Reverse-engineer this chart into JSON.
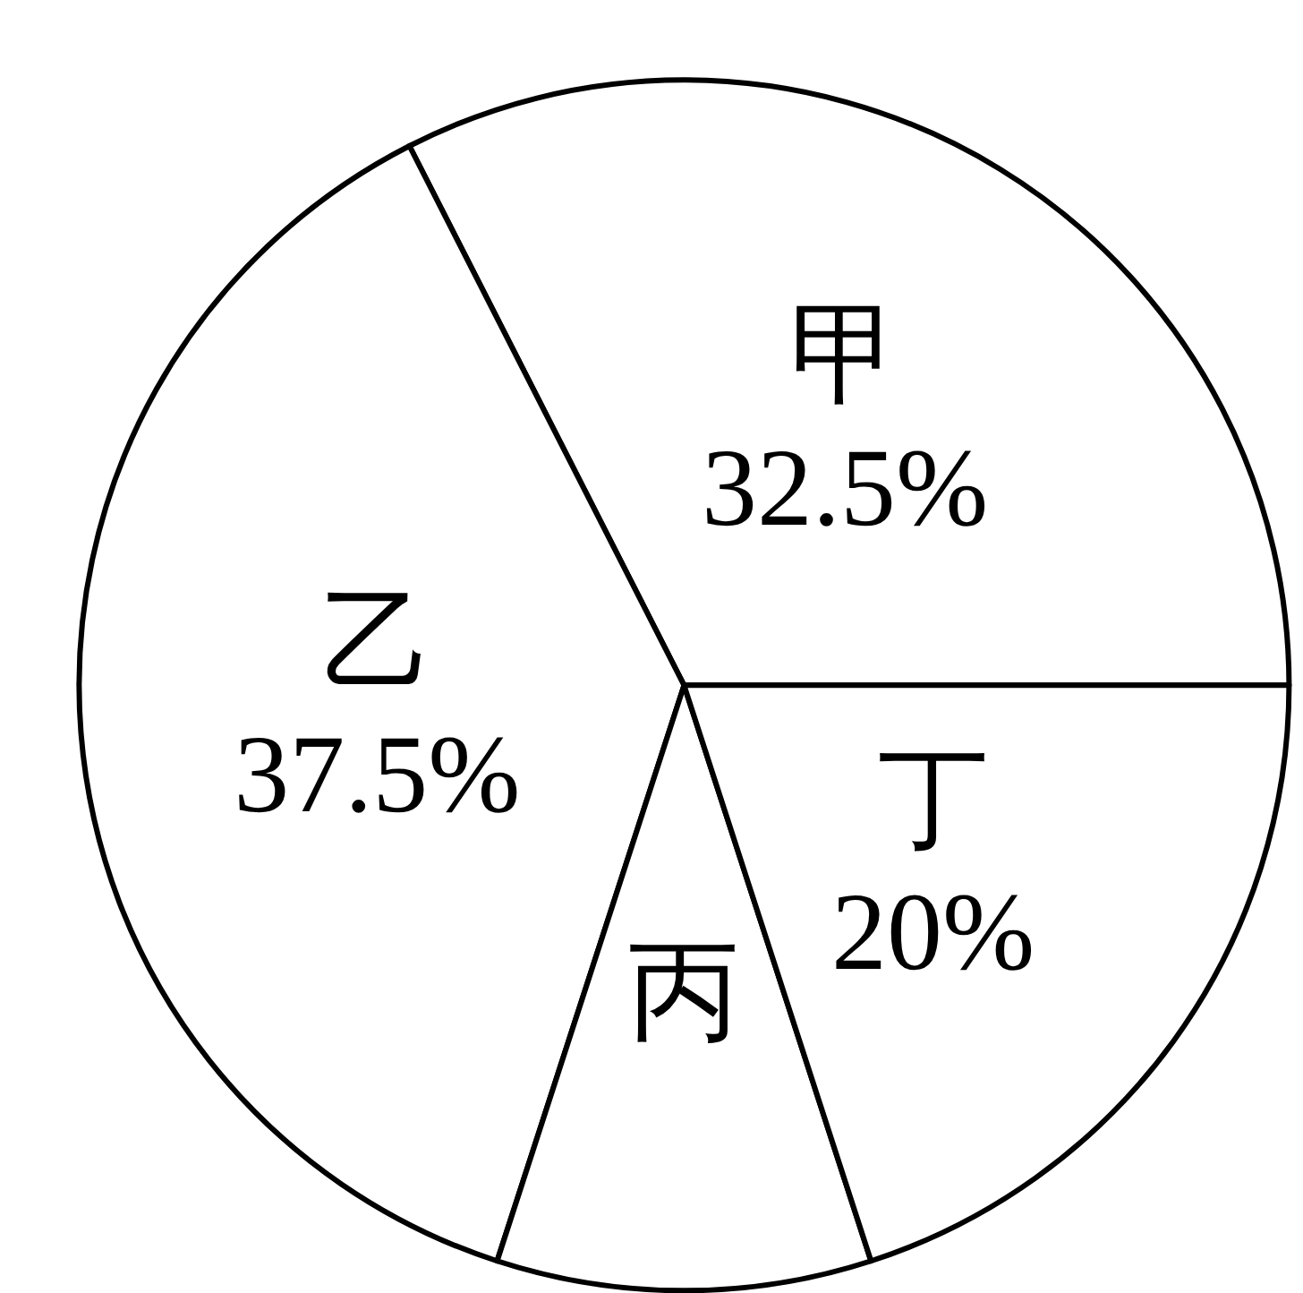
{
  "chart_data": {
    "type": "pie",
    "categories": [
      "甲",
      "乙",
      "丙",
      "丁"
    ],
    "values": [
      32.5,
      37.5,
      10,
      20
    ],
    "colors": [
      "#ffffff",
      "#ffffff",
      "#ffffff",
      "#ffffff"
    ],
    "value_labels": [
      "32.5%",
      "37.5%",
      null,
      "20%"
    ]
  }
}
